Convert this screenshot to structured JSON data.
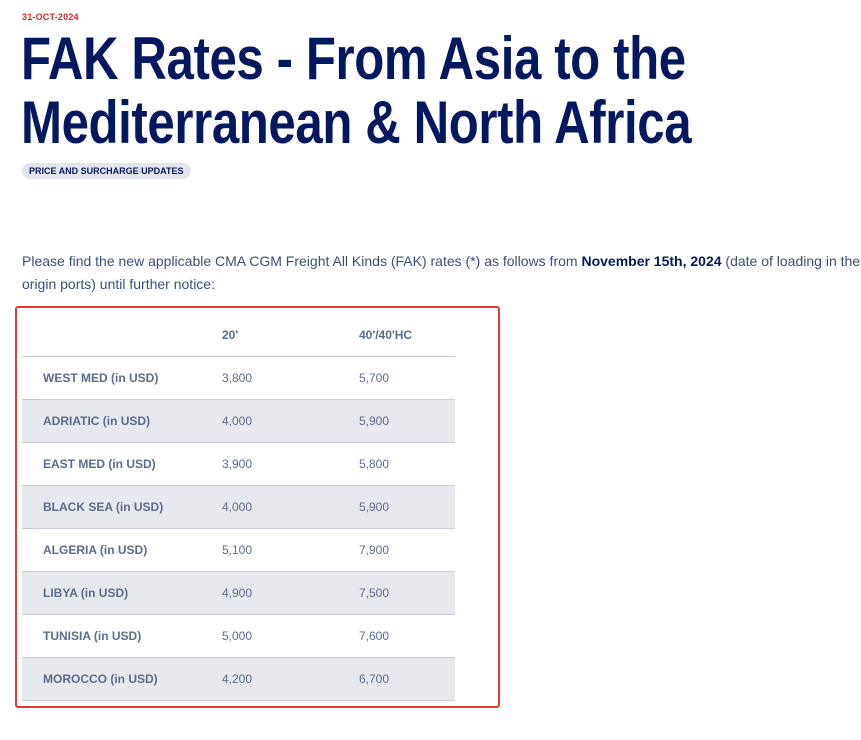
{
  "article": {
    "date": "31-OCT-2024",
    "title_line1": "FAK Rates - From Asia to the",
    "title_line2": "Mediterranean & North Africa",
    "tag": "PRICE AND SURCHARGE UPDATES",
    "intro_before": "Please find the new applicable CMA CGM Freight All Kinds (FAK) rates (*) as follows from ",
    "intro_bold": "November 15th, 2024",
    "intro_after": " (date of loading in the origin ports) until further notice:"
  },
  "table": {
    "headers": [
      "",
      "20'",
      "40'/40'HC"
    ],
    "rows": [
      {
        "destination": "WEST MED (in USD)",
        "c20": "3,800",
        "c40": "5,700"
      },
      {
        "destination": "ADRIATIC (in USD)",
        "c20": "4,000",
        "c40": "5,900"
      },
      {
        "destination": "EAST MED (in USD)",
        "c20": "3,900",
        "c40": "5,800"
      },
      {
        "destination": "BLACK SEA (in USD)",
        "c20": "4,000",
        "c40": "5,900"
      },
      {
        "destination": "ALGERIA (in USD)",
        "c20": "5,100",
        "c40": "7,900"
      },
      {
        "destination": "LIBYA (in USD)",
        "c20": "4,900",
        "c40": "7,500"
      },
      {
        "destination": "TUNISIA (in USD)",
        "c20": "5,000",
        "c40": "7,600"
      },
      {
        "destination": "MOROCCO (in USD)",
        "c20": "4,200",
        "c40": "6,700"
      }
    ]
  },
  "colors": {
    "title": "#04185f",
    "date": "#d8232a",
    "highlight_border": "#e53935",
    "row_alt": "#e8e9ef"
  }
}
